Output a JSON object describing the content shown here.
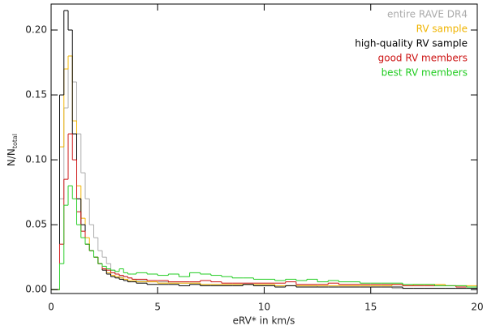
{
  "chart_data": {
    "type": "histogram",
    "x_label": "eRV* in km/s",
    "y_label": "N/N",
    "y_label_sub": "total",
    "xlim": [
      0,
      20
    ],
    "xticks": [
      0,
      5,
      10,
      15,
      20
    ],
    "ylim": [
      -0.003,
      0.22
    ],
    "yticks": [
      {
        "value": 0,
        "label": "0.00"
      },
      {
        "value": 0.05,
        "label": "0.05"
      },
      {
        "value": 0.1,
        "label": "0.10"
      },
      {
        "value": 0.15,
        "label": "0.15"
      },
      {
        "value": 0.2,
        "label": "0.20"
      }
    ],
    "legend": "upper right",
    "bins": [
      0,
      0.2,
      0.4,
      0.6,
      0.8,
      1.0,
      1.2,
      1.4,
      1.6,
      1.8,
      2.0,
      2.2,
      2.4,
      2.6,
      2.8,
      3.0,
      3.2,
      3.4,
      3.6,
      3.8,
      4.0,
      4.5,
      5.0,
      5.5,
      6.0,
      6.5,
      7.0,
      7.5,
      8.0,
      8.5,
      9.0,
      9.5,
      10.0,
      10.5,
      11.0,
      11.5,
      12.0,
      12.5,
      13.0,
      13.5,
      14.0,
      14.5,
      15.0,
      15.5,
      16.0,
      16.5,
      17.0,
      17.5,
      18.0,
      18.5,
      19.0,
      19.5,
      20.0
    ],
    "series": [
      {
        "name": "entire RAVE DR4",
        "color": "#aaaaaa",
        "values": [
          0,
          0,
          0.07,
          0.14,
          0.18,
          0.16,
          0.12,
          0.09,
          0.07,
          0.05,
          0.04,
          0.03,
          0.025,
          0.02,
          0.015,
          0.012,
          0.01,
          0.01,
          0.009,
          0.008,
          0.007,
          0.006,
          0.006,
          0.005,
          0.005,
          0.005,
          0.004,
          0.004,
          0.004,
          0.004,
          0.004,
          0.003,
          0.003,
          0.003,
          0.003,
          0.003,
          0.003,
          0.002,
          0.002,
          0.002,
          0.002,
          0.002,
          0.002,
          0.002,
          0.001,
          0.001,
          0.001,
          0.001,
          0.001,
          0.001,
          0.001,
          0.001
        ]
      },
      {
        "name": "RV sample",
        "color": "#f0b400",
        "values": [
          0,
          0,
          0.11,
          0.17,
          0.18,
          0.13,
          0.08,
          0.055,
          0.04,
          0.03,
          0.025,
          0.02,
          0.016,
          0.013,
          0.011,
          0.01,
          0.009,
          0.008,
          0.007,
          0.007,
          0.006,
          0.006,
          0.005,
          0.005,
          0.005,
          0.005,
          0.004,
          0.004,
          0.004,
          0.004,
          0.004,
          0.004,
          0.004,
          0.003,
          0.003,
          0.003,
          0.003,
          0.003,
          0.003,
          0.003,
          0.003,
          0.003,
          0.003,
          0.003,
          0.004,
          0.003,
          0.004,
          0.004,
          0.004,
          0.003,
          0.003,
          0.003
        ]
      },
      {
        "name": "high-quality RV sample",
        "color": "#000000",
        "values": [
          0,
          0,
          0.15,
          0.215,
          0.2,
          0.12,
          0.07,
          0.05,
          0.035,
          0.03,
          0.025,
          0.02,
          0.015,
          0.012,
          0.01,
          0.009,
          0.008,
          0.007,
          0.006,
          0.006,
          0.005,
          0.004,
          0.004,
          0.004,
          0.003,
          0.004,
          0.003,
          0.003,
          0.003,
          0.003,
          0.004,
          0.003,
          0.003,
          0.002,
          0.003,
          0.002,
          0.002,
          0.002,
          0.002,
          0.002,
          0.002,
          0.002,
          0.002,
          0.002,
          0.002,
          0.001,
          0.001,
          0.001,
          0.001,
          0.001,
          0.001,
          0.001
        ]
      },
      {
        "name": "good RV members",
        "color": "#cc1111",
        "values": [
          0,
          0,
          0.035,
          0.085,
          0.12,
          0.1,
          0.06,
          0.045,
          0.035,
          0.03,
          0.025,
          0.02,
          0.016,
          0.015,
          0.013,
          0.012,
          0.011,
          0.01,
          0.009,
          0.008,
          0.008,
          0.007,
          0.007,
          0.006,
          0.006,
          0.006,
          0.007,
          0.006,
          0.005,
          0.005,
          0.005,
          0.005,
          0.005,
          0.005,
          0.006,
          0.004,
          0.004,
          0.004,
          0.005,
          0.004,
          0.004,
          0.004,
          0.004,
          0.004,
          0.004,
          0.003,
          0.003,
          0.003,
          0.003,
          0.003,
          0.002,
          0.002
        ]
      },
      {
        "name": "best RV members",
        "color": "#22cc22",
        "values": [
          0,
          0,
          0.02,
          0.065,
          0.08,
          0.07,
          0.05,
          0.04,
          0.035,
          0.03,
          0.025,
          0.02,
          0.018,
          0.016,
          0.015,
          0.014,
          0.016,
          0.013,
          0.012,
          0.012,
          0.013,
          0.012,
          0.011,
          0.012,
          0.01,
          0.013,
          0.012,
          0.011,
          0.01,
          0.009,
          0.009,
          0.008,
          0.008,
          0.007,
          0.008,
          0.007,
          0.008,
          0.006,
          0.007,
          0.006,
          0.006,
          0.005,
          0.005,
          0.005,
          0.005,
          0.004,
          0.004,
          0.004,
          0.003,
          0.003,
          0.003,
          0.002
        ]
      }
    ]
  }
}
